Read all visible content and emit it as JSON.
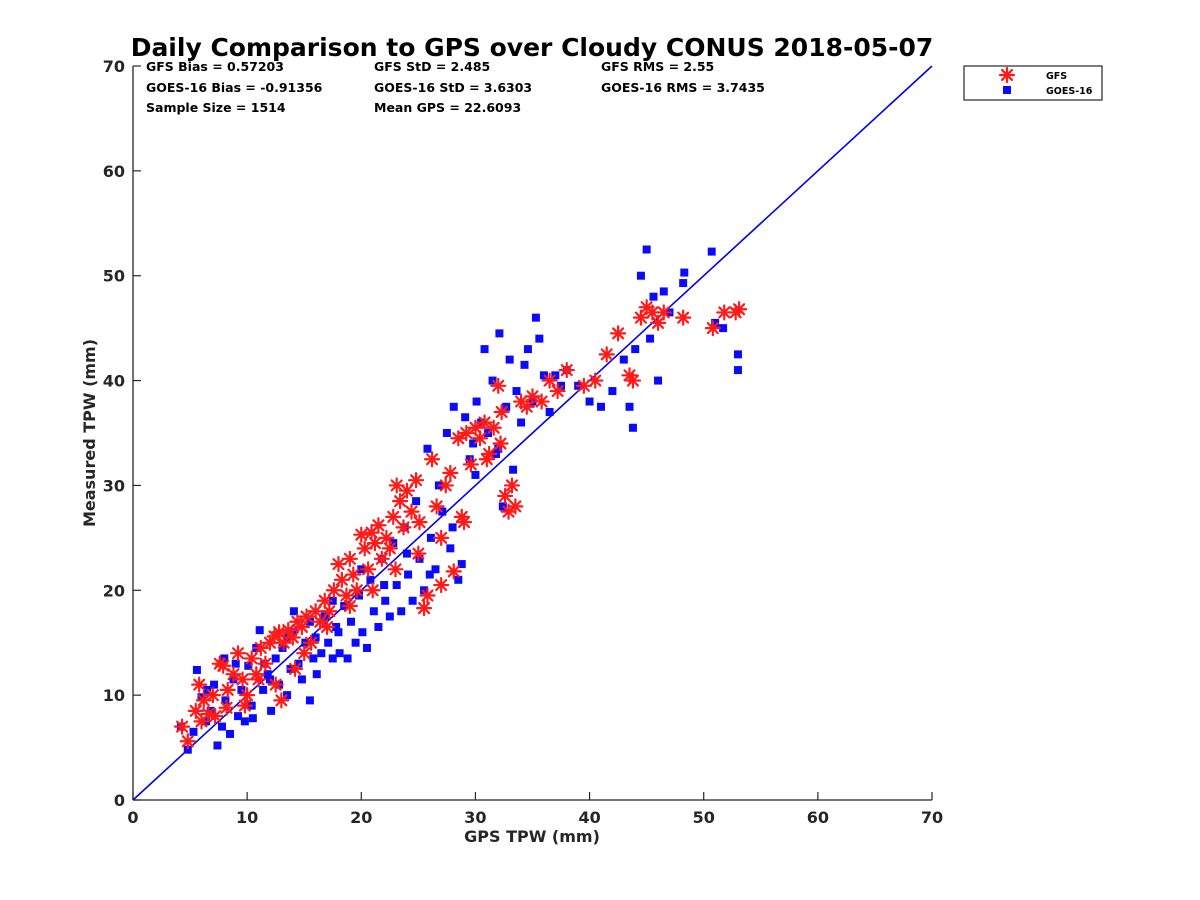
{
  "chart_data": {
    "type": "scatter",
    "title": "Daily Comparison to GPS over Cloudy CONUS 2018-05-07",
    "xlabel": "GPS TPW (mm)",
    "ylabel": "Measured TPW (mm)",
    "xlim": [
      0,
      70
    ],
    "ylim": [
      0,
      70
    ],
    "xticks": [
      0,
      10,
      20,
      30,
      40,
      50,
      60,
      70
    ],
    "yticks": [
      0,
      10,
      20,
      30,
      40,
      50,
      60,
      70
    ],
    "grid": false,
    "legend_position": "outside-top-right",
    "reference_line": {
      "x": [
        0,
        70
      ],
      "y": [
        0,
        70
      ],
      "color": "#0000ee"
    },
    "stats": [
      [
        "GFS Bias = 0.57203",
        "GFS StD = 2.485",
        "GFS RMS = 2.55"
      ],
      [
        "GOES-16 Bias = -0.91356",
        "GOES-16 StD = 3.6303",
        "GOES-16 RMS = 3.7435"
      ],
      [
        "Sample Size = 1514",
        "Mean GPS = 22.6093",
        ""
      ]
    ],
    "series": [
      {
        "name": "GFS",
        "marker": "asterisk",
        "color": "#ff1a1a",
        "points": [
          [
            4.3,
            7.0
          ],
          [
            4.8,
            5.6
          ],
          [
            5.5,
            8.5
          ],
          [
            5.8,
            11.0
          ],
          [
            6.2,
            9.5
          ],
          [
            6.6,
            8.2
          ],
          [
            7.0,
            10.0
          ],
          [
            7.6,
            13.0
          ],
          [
            7.9,
            12.8
          ],
          [
            8.3,
            10.5
          ],
          [
            8.8,
            12.0
          ],
          [
            9.2,
            14.0
          ],
          [
            9.6,
            11.5
          ],
          [
            10.0,
            10.0
          ],
          [
            10.4,
            13.5
          ],
          [
            10.8,
            12.0
          ],
          [
            11.2,
            14.5
          ],
          [
            11.6,
            13.0
          ],
          [
            12.0,
            15.0
          ],
          [
            12.4,
            15.6
          ],
          [
            12.8,
            16.0
          ],
          [
            13.2,
            15.0
          ],
          [
            13.6,
            16.2
          ],
          [
            14.0,
            15.5
          ],
          [
            14.4,
            17.0
          ],
          [
            14.8,
            16.5
          ],
          [
            15.2,
            17.5
          ],
          [
            15.6,
            15.0
          ],
          [
            16.0,
            18.0
          ],
          [
            16.4,
            17.0
          ],
          [
            16.8,
            19.0
          ],
          [
            17.2,
            18.0
          ],
          [
            17.6,
            20.0
          ],
          [
            18.0,
            22.5
          ],
          [
            18.3,
            21.0
          ],
          [
            18.7,
            19.5
          ],
          [
            19.0,
            23.0
          ],
          [
            19.3,
            21.5
          ],
          [
            19.6,
            20.0
          ],
          [
            20.0,
            25.3
          ],
          [
            20.3,
            24.0
          ],
          [
            20.6,
            22.0
          ],
          [
            20.9,
            25.5
          ],
          [
            21.2,
            24.5
          ],
          [
            21.5,
            26.2
          ],
          [
            21.8,
            23.0
          ],
          [
            22.2,
            25.0
          ],
          [
            22.5,
            24.0
          ],
          [
            22.8,
            27.0
          ],
          [
            23.1,
            30.0
          ],
          [
            23.4,
            28.5
          ],
          [
            23.7,
            26.0
          ],
          [
            24.0,
            29.5
          ],
          [
            24.4,
            27.5
          ],
          [
            24.8,
            30.5
          ],
          [
            25.1,
            26.5
          ],
          [
            25.5,
            18.3
          ],
          [
            25.8,
            19.5
          ],
          [
            26.2,
            32.5
          ],
          [
            26.6,
            28.0
          ],
          [
            27.0,
            20.5
          ],
          [
            27.4,
            30.0
          ],
          [
            27.8,
            31.2
          ],
          [
            28.1,
            21.8
          ],
          [
            28.5,
            34.5
          ],
          [
            28.8,
            27.0
          ],
          [
            29.2,
            35.0
          ],
          [
            29.6,
            32.0
          ],
          [
            30.0,
            35.5
          ],
          [
            30.4,
            34.5
          ],
          [
            30.8,
            36.0
          ],
          [
            31.2,
            33.0
          ],
          [
            31.6,
            35.5
          ],
          [
            32.0,
            39.5
          ],
          [
            32.3,
            37.0
          ],
          [
            32.6,
            29.0
          ],
          [
            32.9,
            27.5
          ],
          [
            33.2,
            30.0
          ],
          [
            33.5,
            28.0
          ],
          [
            34.0,
            38.0
          ],
          [
            34.5,
            37.5
          ],
          [
            35.0,
            38.5
          ],
          [
            35.8,
            38.0
          ],
          [
            36.5,
            40.0
          ],
          [
            37.2,
            39.0
          ],
          [
            38.0,
            41.0
          ],
          [
            39.5,
            39.5
          ],
          [
            40.5,
            40.0
          ],
          [
            41.5,
            42.5
          ],
          [
            42.5,
            44.5
          ],
          [
            43.5,
            40.5
          ],
          [
            43.8,
            40.0
          ],
          [
            44.5,
            46.0
          ],
          [
            45.0,
            47.0
          ],
          [
            45.5,
            46.5
          ],
          [
            46.0,
            45.5
          ],
          [
            46.5,
            46.5
          ],
          [
            48.2,
            46.0
          ],
          [
            50.8,
            45.0
          ],
          [
            51.8,
            46.5
          ],
          [
            52.8,
            46.5
          ],
          [
            53.1,
            46.8
          ],
          [
            9.8,
            9.0
          ],
          [
            11.0,
            11.5
          ],
          [
            13.0,
            9.5
          ],
          [
            15.0,
            14.0
          ],
          [
            17.0,
            16.5
          ],
          [
            19.0,
            18.5
          ],
          [
            21.0,
            20.0
          ],
          [
            23.0,
            22.0
          ],
          [
            25.0,
            23.5
          ],
          [
            27.0,
            25.0
          ],
          [
            29.0,
            26.5
          ],
          [
            31.0,
            32.5
          ],
          [
            32.2,
            34.0
          ],
          [
            7.2,
            8.0
          ],
          [
            8.2,
            8.8
          ],
          [
            6.0,
            7.5
          ],
          [
            12.5,
            11.0
          ],
          [
            14.2,
            12.5
          ]
        ]
      },
      {
        "name": "GOES-16",
        "marker": "square",
        "color": "#0a0aff",
        "points": [
          [
            4.2,
            7.0
          ],
          [
            4.8,
            4.8
          ],
          [
            5.3,
            6.5
          ],
          [
            5.6,
            12.4
          ],
          [
            6.0,
            9.8
          ],
          [
            6.4,
            7.5
          ],
          [
            6.8,
            8.5
          ],
          [
            7.1,
            11.0
          ],
          [
            7.4,
            5.2
          ],
          [
            7.8,
            7.0
          ],
          [
            8.1,
            9.5
          ],
          [
            8.5,
            6.3
          ],
          [
            8.8,
            11.5
          ],
          [
            9.2,
            8.0
          ],
          [
            9.5,
            10.5
          ],
          [
            9.8,
            7.5
          ],
          [
            10.1,
            12.8
          ],
          [
            10.4,
            9.0
          ],
          [
            10.8,
            14.5
          ],
          [
            11.1,
            16.2
          ],
          [
            11.4,
            10.5
          ],
          [
            11.8,
            12.0
          ],
          [
            12.1,
            8.5
          ],
          [
            12.5,
            13.5
          ],
          [
            12.8,
            11.0
          ],
          [
            13.1,
            14.5
          ],
          [
            13.5,
            10.0
          ],
          [
            13.8,
            12.5
          ],
          [
            14.1,
            18.0
          ],
          [
            14.5,
            13.0
          ],
          [
            14.8,
            11.5
          ],
          [
            15.1,
            15.0
          ],
          [
            15.5,
            9.5
          ],
          [
            15.8,
            13.5
          ],
          [
            16.1,
            12.0
          ],
          [
            16.5,
            14.0
          ],
          [
            16.8,
            17.5
          ],
          [
            17.1,
            15.0
          ],
          [
            17.5,
            13.5
          ],
          [
            17.8,
            16.5
          ],
          [
            18.1,
            14.0
          ],
          [
            18.5,
            18.5
          ],
          [
            18.8,
            13.5
          ],
          [
            19.1,
            17.0
          ],
          [
            19.5,
            15.0
          ],
          [
            19.8,
            19.5
          ],
          [
            20.1,
            16.0
          ],
          [
            20.5,
            14.5
          ],
          [
            20.8,
            21.0
          ],
          [
            21.1,
            18.0
          ],
          [
            21.5,
            16.5
          ],
          [
            21.8,
            23.0
          ],
          [
            22.1,
            19.0
          ],
          [
            22.5,
            17.5
          ],
          [
            22.8,
            24.5
          ],
          [
            23.1,
            20.5
          ],
          [
            23.5,
            18.0
          ],
          [
            23.8,
            26.0
          ],
          [
            24.1,
            21.5
          ],
          [
            24.5,
            19.0
          ],
          [
            24.8,
            28.5
          ],
          [
            25.1,
            23.0
          ],
          [
            25.5,
            20.0
          ],
          [
            25.8,
            33.5
          ],
          [
            26.1,
            25.0
          ],
          [
            26.5,
            22.0
          ],
          [
            26.8,
            30.0
          ],
          [
            27.1,
            27.5
          ],
          [
            27.5,
            35.0
          ],
          [
            27.8,
            24.0
          ],
          [
            28.1,
            37.5
          ],
          [
            28.5,
            21.0
          ],
          [
            28.8,
            22.5
          ],
          [
            29.1,
            36.5
          ],
          [
            29.5,
            32.5
          ],
          [
            29.8,
            34.0
          ],
          [
            30.1,
            38.0
          ],
          [
            30.5,
            36.0
          ],
          [
            30.8,
            43.0
          ],
          [
            31.1,
            35.0
          ],
          [
            31.5,
            40.0
          ],
          [
            31.8,
            33.0
          ],
          [
            32.1,
            44.5
          ],
          [
            32.4,
            28.0
          ],
          [
            32.7,
            37.5
          ],
          [
            33.0,
            42.0
          ],
          [
            33.3,
            31.5
          ],
          [
            33.6,
            39.0
          ],
          [
            34.0,
            36.0
          ],
          [
            34.3,
            41.5
          ],
          [
            34.6,
            43.0
          ],
          [
            35.0,
            38.0
          ],
          [
            35.3,
            46.0
          ],
          [
            35.6,
            44.0
          ],
          [
            36.0,
            40.5
          ],
          [
            36.5,
            37.0
          ],
          [
            37.0,
            40.5
          ],
          [
            37.5,
            39.5
          ],
          [
            38.0,
            41.0
          ],
          [
            39.0,
            39.5
          ],
          [
            40.0,
            38.0
          ],
          [
            41.0,
            37.5
          ],
          [
            42.0,
            39.0
          ],
          [
            43.0,
            42.0
          ],
          [
            43.5,
            37.5
          ],
          [
            43.8,
            35.5
          ],
          [
            44.0,
            43.0
          ],
          [
            44.5,
            50.0
          ],
          [
            45.0,
            52.5
          ],
          [
            45.3,
            44.0
          ],
          [
            45.6,
            48.0
          ],
          [
            46.0,
            40.0
          ],
          [
            46.5,
            48.5
          ],
          [
            47.0,
            46.5
          ],
          [
            48.3,
            50.3
          ],
          [
            48.2,
            49.3
          ],
          [
            50.7,
            52.3
          ],
          [
            51.0,
            45.5
          ],
          [
            51.7,
            45.0
          ],
          [
            53.0,
            42.5
          ],
          [
            53.0,
            41.0
          ],
          [
            9.0,
            13.0
          ],
          [
            10.5,
            7.8
          ],
          [
            12.0,
            11.5
          ],
          [
            14.0,
            16.0
          ],
          [
            16.0,
            15.5
          ],
          [
            18.0,
            16.0
          ],
          [
            20.0,
            22.0
          ],
          [
            22.0,
            20.5
          ],
          [
            24.0,
            23.5
          ],
          [
            26.0,
            21.5
          ],
          [
            28.0,
            26.0
          ],
          [
            30.0,
            31.0
          ],
          [
            32.0,
            33.5
          ],
          [
            8.0,
            13.5
          ],
          [
            6.5,
            10.5
          ],
          [
            11.5,
            13.0
          ],
          [
            13.5,
            15.5
          ],
          [
            15.5,
            17.0
          ],
          [
            17.5,
            19.0
          ]
        ]
      }
    ]
  }
}
